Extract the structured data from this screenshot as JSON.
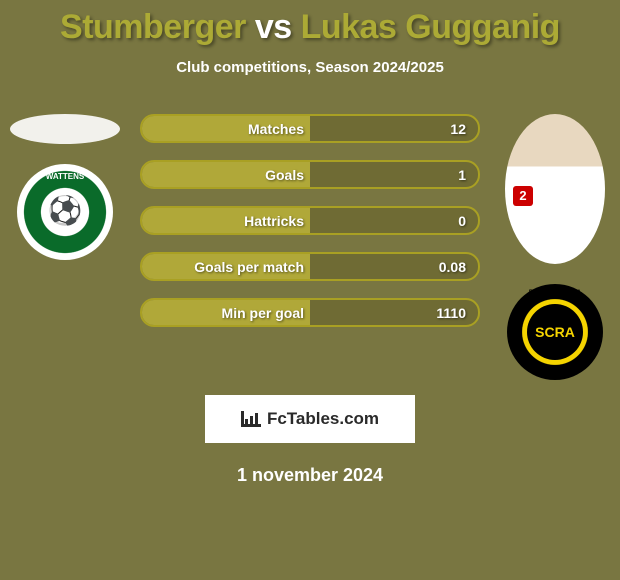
{
  "background_color": "#797641",
  "title": {
    "full": "Stumberger vs Lukas Gugganig",
    "p1_color": "#acaa35",
    "vs_color": "#ffffff",
    "p2_color": "#acaa35",
    "p1": "Stumberger",
    "vs": "vs",
    "p2": "Lukas Gugganig",
    "fontsize": 34
  },
  "subtitle": "Club competitions, Season 2024/2025",
  "subtitle_color": "#ffffff",
  "bars": {
    "border_color": "#a9a023",
    "left_bg": "#b0a839",
    "right_bg": "#6f6b34",
    "label_color": "#ffffff",
    "value_color": "#ffffff",
    "fontsize": 14,
    "items": [
      {
        "label": "Matches",
        "left": "",
        "right": "12"
      },
      {
        "label": "Goals",
        "left": "",
        "right": "1"
      },
      {
        "label": "Hattricks",
        "left": "",
        "right": "0"
      },
      {
        "label": "Goals per match",
        "left": "",
        "right": "0.08"
      },
      {
        "label": "Min per goal",
        "left": "",
        "right": "1110"
      }
    ]
  },
  "players": {
    "left": {
      "name": "Stumberger",
      "club": "WSG Wattens",
      "club_label": "WATTENS"
    },
    "right": {
      "name": "Lukas Gugganig",
      "club": "SCR Altach",
      "club_label": "SCRA"
    }
  },
  "footer_brand": "FcTables.com",
  "date": "1 november 2024",
  "date_color": "#ffffff"
}
